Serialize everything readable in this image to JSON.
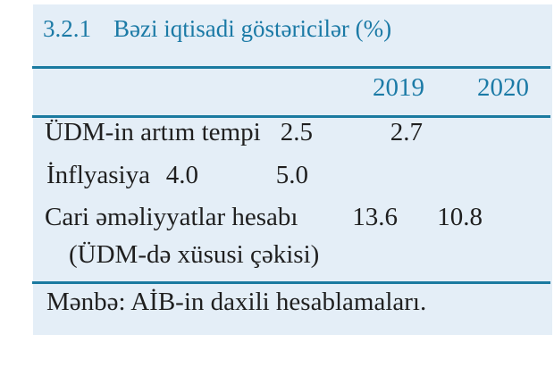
{
  "table": {
    "number": "3.2.1",
    "title": "Bəzi iqtisadi göstəricilər (%)",
    "columns": [
      "2019",
      "2020"
    ],
    "rows": [
      {
        "label": "ÜDM-in artım tempi",
        "values": [
          "2.5",
          "2.7"
        ]
      },
      {
        "label": "İnflyasiya",
        "values": [
          "4.0",
          "5.0"
        ]
      },
      {
        "label": "Cari əməliyyatlar hesabı",
        "label2": "(ÜDM-də xüsusi çəkisi)",
        "values": [
          "13.6",
          "10.8"
        ]
      }
    ],
    "source": "Mənbə: AİB-in daxili hesablamaları."
  },
  "colors": {
    "accent": "#1b7aa6",
    "rule": "#1a7aa0",
    "panel_bg": "#e4eef7",
    "text": "#1f1f1f"
  }
}
